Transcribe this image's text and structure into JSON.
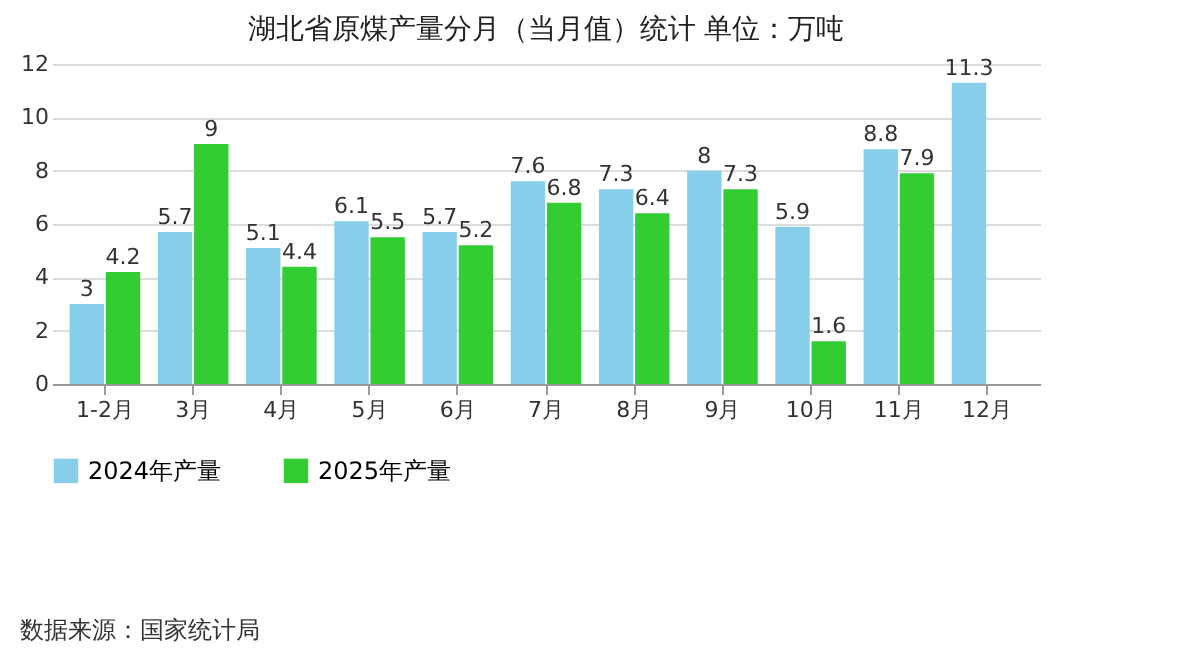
{
  "chart_data": {
    "type": "bar",
    "title": "湖北省原煤产量分月（当月值）统计  单位：万吨",
    "categories": [
      "1-2月",
      "3月",
      "4月",
      "5月",
      "6月",
      "7月",
      "8月",
      "9月",
      "10月",
      "11月",
      "12月"
    ],
    "series": [
      {
        "name": "2024年产量",
        "color": "#87ceeb",
        "values": [
          3,
          5.7,
          5.1,
          6.1,
          5.7,
          7.6,
          7.3,
          8,
          5.9,
          8.8,
          11.3
        ]
      },
      {
        "name": "2025年产量",
        "color": "#33cc33",
        "values": [
          4.2,
          9,
          4.4,
          5.5,
          5.2,
          6.8,
          6.4,
          7.3,
          1.6,
          7.9,
          null
        ]
      }
    ],
    "ylim": [
      0,
      12
    ],
    "yticks": [
      0,
      2,
      4,
      6,
      8,
      10,
      12
    ],
    "grid": "y",
    "legend": "bottom",
    "data_labels": true,
    "annotations": [
      "数据来源：国家统计局"
    ]
  }
}
